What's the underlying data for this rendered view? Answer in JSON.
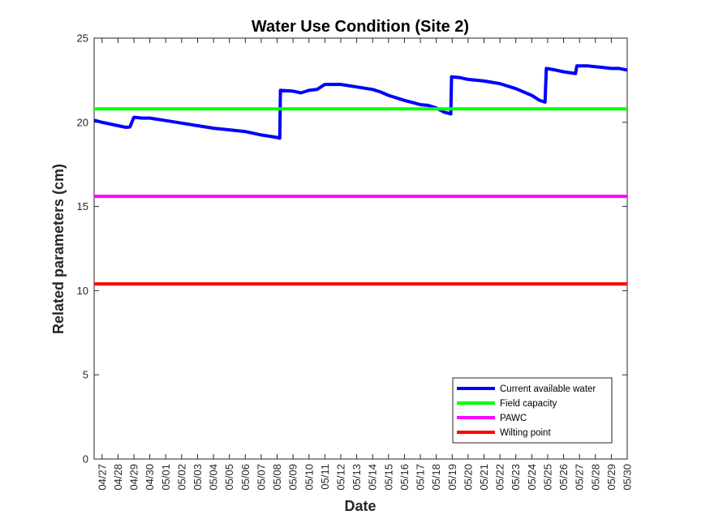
{
  "chart_data": {
    "type": "line",
    "title": "Water Use Condition (Site 2)",
    "xlabel": "Date",
    "ylabel": "Related parameters (cm)",
    "xlim": [
      "04/26 12:00",
      "05/30"
    ],
    "ylim": [
      0,
      25
    ],
    "yticks": [
      0,
      5,
      10,
      15,
      20,
      25
    ],
    "xticks": [
      "04/27",
      "04/28",
      "04/29",
      "04/30",
      "05/01",
      "05/02",
      "05/03",
      "05/04",
      "05/05",
      "05/06",
      "05/07",
      "05/08",
      "05/09",
      "05/10",
      "05/11",
      "05/12",
      "05/13",
      "05/14",
      "05/15",
      "05/16",
      "05/17",
      "05/18",
      "05/19",
      "05/20",
      "05/21",
      "05/22",
      "05/23",
      "05/24",
      "05/25",
      "05/26",
      "05/27",
      "05/28",
      "05/29",
      "05/30"
    ],
    "legend_position": "bottom-right",
    "grid": false,
    "series": [
      {
        "name": "Current available water",
        "color": "#0000ff",
        "points": [
          [
            "04/26 12:00",
            20.12
          ],
          [
            "04/27 00:00",
            20.0
          ],
          [
            "04/28 00:00",
            19.8
          ],
          [
            "04/28 12:00",
            19.7
          ],
          [
            "04/28 18:00",
            19.72
          ],
          [
            "04/29 00:00",
            20.3
          ],
          [
            "04/29 12:00",
            20.25
          ],
          [
            "04/30 00:00",
            20.25
          ],
          [
            "05/01 00:00",
            20.1
          ],
          [
            "05/02 00:00",
            19.95
          ],
          [
            "05/03 00:00",
            19.8
          ],
          [
            "05/04 00:00",
            19.65
          ],
          [
            "05/05 00:00",
            19.55
          ],
          [
            "05/06 00:00",
            19.45
          ],
          [
            "05/07 00:00",
            19.25
          ],
          [
            "05/08 00:00",
            19.1
          ],
          [
            "05/08 04:00",
            19.05
          ],
          [
            "05/08 05:00",
            21.9
          ],
          [
            "05/09 00:00",
            21.85
          ],
          [
            "05/09 12:00",
            21.75
          ],
          [
            "05/10 00:00",
            21.9
          ],
          [
            "05/10 12:00",
            21.95
          ],
          [
            "05/11 00:00",
            22.25
          ],
          [
            "05/12 00:00",
            22.25
          ],
          [
            "05/13 00:00",
            22.1
          ],
          [
            "05/14 00:00",
            21.95
          ],
          [
            "05/14 12:00",
            21.8
          ],
          [
            "05/15 00:00",
            21.6
          ],
          [
            "05/16 00:00",
            21.3
          ],
          [
            "05/17 00:00",
            21.05
          ],
          [
            "05/17 12:00",
            21.0
          ],
          [
            "05/18 00:00",
            20.85
          ],
          [
            "05/18 12:00",
            20.6
          ],
          [
            "05/18 22:00",
            20.5
          ],
          [
            "05/18 23:00",
            22.7
          ],
          [
            "05/19 12:00",
            22.65
          ],
          [
            "05/20 00:00",
            22.55
          ],
          [
            "05/21 00:00",
            22.45
          ],
          [
            "05/22 00:00",
            22.3
          ],
          [
            "05/23 00:00",
            22.0
          ],
          [
            "05/24 00:00",
            21.6
          ],
          [
            "05/24 12:00",
            21.3
          ],
          [
            "05/24 20:00",
            21.2
          ],
          [
            "05/24 22:00",
            23.2
          ],
          [
            "05/25 12:00",
            23.1
          ],
          [
            "05/26 00:00",
            23.0
          ],
          [
            "05/26 18:00",
            22.9
          ],
          [
            "05/26 20:00",
            23.35
          ],
          [
            "05/27 12:00",
            23.35
          ],
          [
            "05/28 00:00",
            23.3
          ],
          [
            "05/28 12:00",
            23.25
          ],
          [
            "05/29 00:00",
            23.2
          ],
          [
            "05/29 12:00",
            23.2
          ],
          [
            "05/30 00:00",
            23.1
          ]
        ]
      },
      {
        "name": "Field capacity",
        "color": "#00ff00",
        "value": 20.8
      },
      {
        "name": "PAWC",
        "color": "#ff00ff",
        "value": 15.6
      },
      {
        "name": "Wilting point",
        "color": "#ff0000",
        "value": 10.4
      }
    ]
  }
}
